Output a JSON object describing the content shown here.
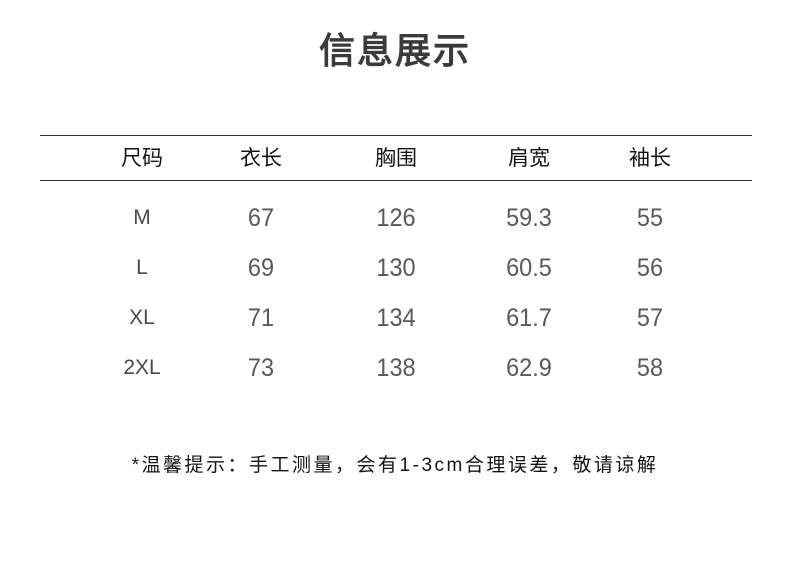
{
  "title": "信息展示",
  "size_table": {
    "columns": [
      "尺码",
      "衣长",
      "胸围",
      "肩宽",
      "袖长"
    ],
    "rows": [
      {
        "size": "M",
        "length": "67",
        "chest": "126",
        "shoulder": "59.3",
        "sleeve": "55"
      },
      {
        "size": "L",
        "length": "69",
        "chest": "130",
        "shoulder": "60.5",
        "sleeve": "56"
      },
      {
        "size": "XL",
        "length": "71",
        "chest": "134",
        "shoulder": "61.7",
        "sleeve": "57"
      },
      {
        "size": "2XL",
        "length": "73",
        "chest": "138",
        "shoulder": "62.9",
        "sleeve": "58"
      }
    ]
  },
  "footnote": "*温馨提示：手工测量，会有1-3cm合理误差，敬请谅解",
  "colors": {
    "background": "#ffffff",
    "title_text": "#3b3b3b",
    "header_text": "#141414",
    "size_text": "#4a4a4a",
    "number_text": "#595959",
    "rule_line": "#333333"
  }
}
